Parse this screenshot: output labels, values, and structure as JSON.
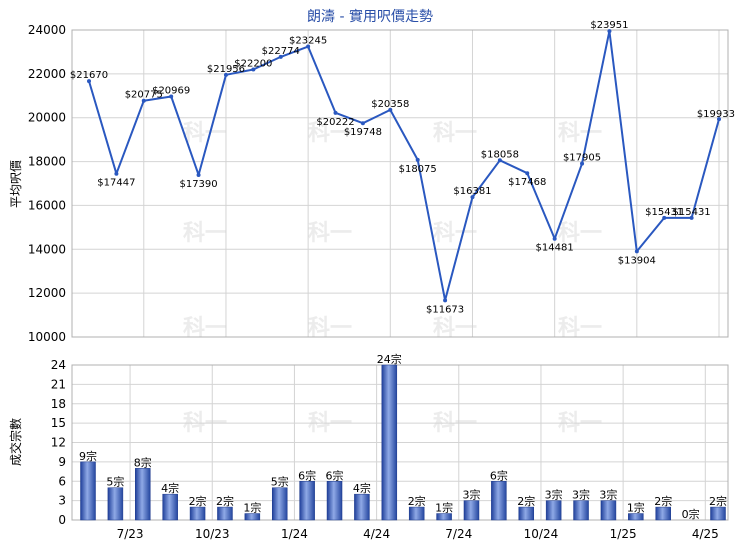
{
  "chart_data": [
    {
      "type": "line",
      "title": "朗濤 - 實用呎價走勢",
      "ylabel": "平均呎價",
      "ylim": [
        10000,
        24000
      ],
      "yticks": [
        10000,
        12000,
        14000,
        16000,
        18000,
        20000,
        22000,
        24000
      ],
      "grid": true,
      "series": [
        {
          "values": [
            21670,
            17447,
            20775,
            20969,
            17390,
            21956,
            22200,
            22774,
            23245,
            20222,
            19748,
            20358,
            18075,
            11673,
            16381,
            18058,
            17468,
            14481,
            17905,
            23951,
            13904,
            15431,
            15431,
            19933
          ],
          "labels": [
            "$21670",
            "$17447",
            "$20775",
            "$20969",
            "$17390",
            "$21956",
            "$22200",
            "$22774",
            "$23245",
            "$20222",
            "$19748",
            "$20358",
            "$18075",
            "$11673",
            "$16381",
            "$18058",
            "$17468",
            "$14481",
            "$17905",
            "$23951",
            "$13904",
            "$15431",
            "$15431",
            "$19933"
          ],
          "color": "#2a58c0"
        }
      ]
    },
    {
      "type": "bar",
      "ylabel": "成交宗數",
      "ylim": [
        0,
        24
      ],
      "yticks": [
        0,
        3,
        6,
        9,
        12,
        15,
        18,
        21,
        24
      ],
      "grid": true,
      "x_tick_labels": [
        {
          "index": 2,
          "label": "7/23"
        },
        {
          "index": 5,
          "label": "10/23"
        },
        {
          "index": 8,
          "label": "1/24"
        },
        {
          "index": 11,
          "label": "4/24"
        },
        {
          "index": 14,
          "label": "7/24"
        },
        {
          "index": 17,
          "label": "10/24"
        },
        {
          "index": 20,
          "label": "1/25"
        },
        {
          "index": 23,
          "label": "4/25"
        }
      ],
      "series": [
        {
          "values": [
            9,
            5,
            8,
            4,
            2,
            2,
            1,
            5,
            6,
            6,
            4,
            24,
            2,
            1,
            3,
            6,
            2,
            3,
            3,
            3,
            1,
            2,
            0,
            2
          ],
          "labels": [
            "9宗",
            "5宗",
            "8宗",
            "4宗",
            "2宗",
            "2宗",
            "1宗",
            "5宗",
            "6宗",
            "6宗",
            "4宗",
            "24宗",
            "2宗",
            "1宗",
            "3宗",
            "6宗",
            "2宗",
            "3宗",
            "3宗",
            "3宗",
            "1宗",
            "2宗",
            "0宗",
            "2宗"
          ],
          "color": "#3b62c4"
        }
      ]
    }
  ],
  "watermark": "科一"
}
